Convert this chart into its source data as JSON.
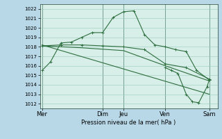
{
  "background_color": "#b8d8e8",
  "plot_bg_color": "#d8eee8",
  "grid_color": "#99ccbb",
  "line_color": "#2d6e3e",
  "xlabel": "Pression niveau de la mer( hPa )",
  "ylim": [
    1011.5,
    1022.5
  ],
  "xlim": [
    0,
    8.5
  ],
  "yticks": [
    1012,
    1013,
    1014,
    1015,
    1016,
    1017,
    1018,
    1019,
    1020,
    1021,
    1022
  ],
  "day_labels": [
    "Mer",
    "Dim",
    "Jeu",
    "Ven",
    "Sam"
  ],
  "day_positions": [
    0.1,
    3.0,
    4.0,
    6.0,
    8.1
  ],
  "series1_x": [
    0.1,
    0.5,
    1.0,
    1.5,
    2.0,
    2.5,
    3.0,
    3.5,
    4.0,
    4.5,
    5.0,
    5.5,
    6.0,
    6.5,
    7.0,
    7.5,
    8.1
  ],
  "series1_y": [
    1015.5,
    1016.4,
    1018.4,
    1018.5,
    1019.0,
    1019.5,
    1019.5,
    1021.1,
    1021.7,
    1021.8,
    1019.3,
    1018.2,
    1018.0,
    1017.7,
    1017.5,
    1015.5,
    1014.5
  ],
  "series2_x": [
    0.1,
    1.0,
    2.0,
    3.0,
    4.0,
    5.0,
    6.0,
    7.0,
    8.1
  ],
  "series2_y": [
    1018.1,
    1018.2,
    1018.2,
    1018.1,
    1018.0,
    1017.7,
    1016.2,
    1015.8,
    1014.6
  ],
  "series3_x": [
    0.1,
    2.0,
    4.0,
    6.0,
    8.1
  ],
  "series3_y": [
    1018.1,
    1017.9,
    1017.6,
    1016.0,
    1014.4
  ],
  "series4_x": [
    0.1,
    8.1
  ],
  "series4_y": [
    1018.2,
    1013.0
  ],
  "series5_x": [
    6.0,
    6.3,
    6.6,
    7.0,
    7.3,
    7.6,
    8.0,
    8.1
  ],
  "series5_y": [
    1015.8,
    1015.5,
    1015.2,
    1013.0,
    1012.2,
    1012.1,
    1013.8,
    1014.5
  ],
  "vline_positions": [
    0.1,
    3.0,
    4.0,
    6.0,
    8.1
  ],
  "vline_color": "#335544",
  "ylabel_fontsize": 5,
  "xlabel_fontsize": 6,
  "tick_fontsize": 5
}
